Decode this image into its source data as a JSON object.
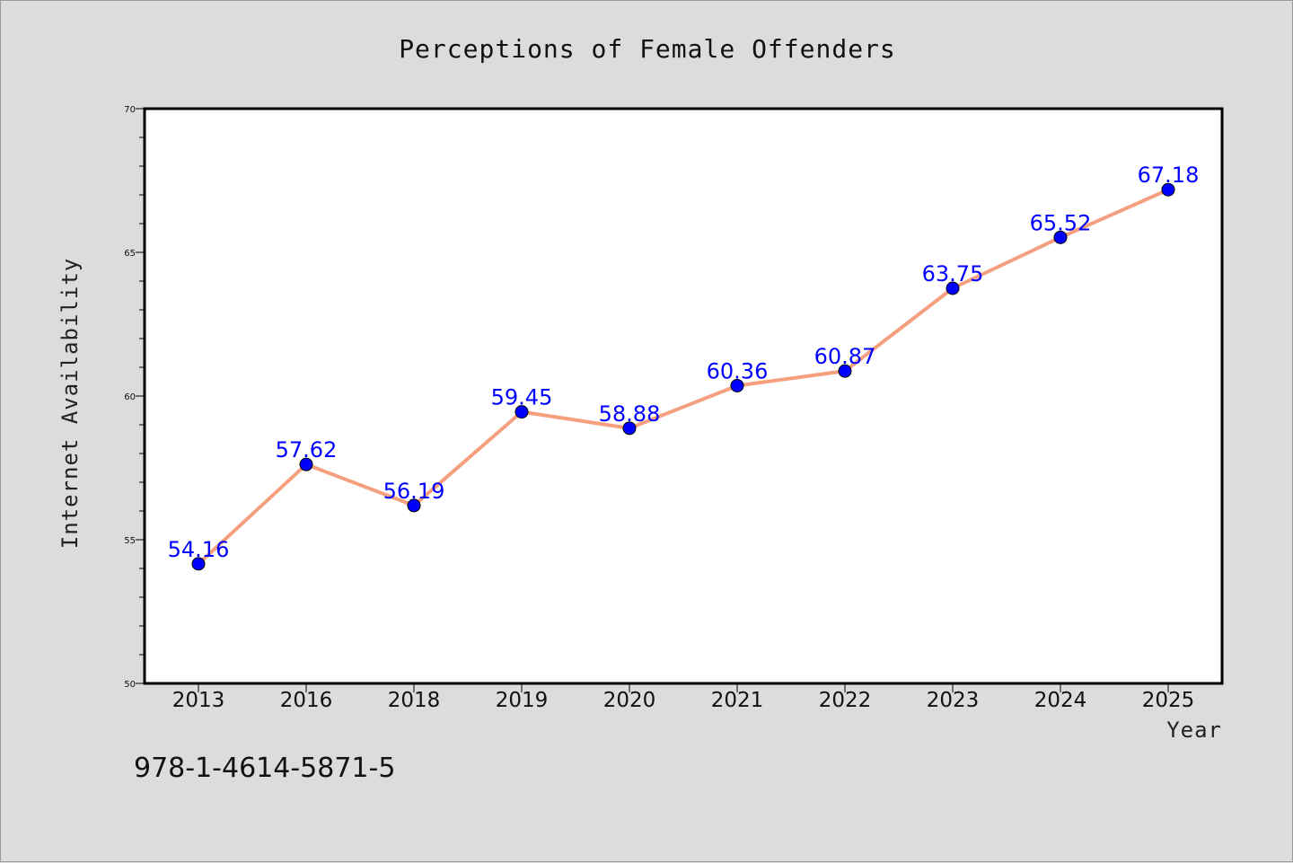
{
  "chart_data": {
    "type": "line",
    "title": "Perceptions of Female Offenders",
    "xlabel": "Year",
    "ylabel": "Internet Availability",
    "categories": [
      "2013",
      "2016",
      "2018",
      "2019",
      "2020",
      "2021",
      "2022",
      "2023",
      "2024",
      "2025"
    ],
    "series": [
      {
        "values": [
          54.16,
          57.62,
          56.19,
          59.45,
          58.88,
          60.36,
          60.87,
          63.75,
          65.52,
          67.18
        ],
        "labels": [
          "54.16",
          "57.62",
          "56.19",
          "59.45",
          "58.88",
          "60.36",
          "60.87",
          "63.75",
          "65.52",
          "67.18"
        ]
      }
    ],
    "ylim": [
      50,
      70
    ],
    "yticks": [
      "50",
      "55",
      "60",
      "65",
      "70"
    ],
    "grid": false,
    "legend": "none",
    "line_color": "#f4a07f",
    "marker_color": "#0000ff",
    "label_color": "#0000ff"
  },
  "footer": {
    "isbn": "978-1-4614-5871-5"
  }
}
